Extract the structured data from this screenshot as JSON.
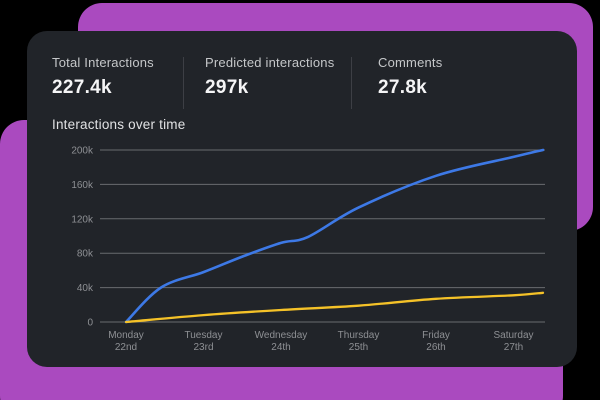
{
  "colors": {
    "background": "#000000",
    "accent_magenta": "#aa4abf",
    "card_background": "#212429",
    "grid_line": "#696b6f",
    "axis_text": "#8e9094",
    "line_interactions": "#3d79e6",
    "line_comments": "#f5c228"
  },
  "stats": [
    {
      "label": "Total Interactions",
      "value": "227.4k"
    },
    {
      "label": "Predicted interactions",
      "value": "297k"
    },
    {
      "label": "Comments",
      "value": "27.8k"
    }
  ],
  "chart_data": {
    "type": "line",
    "title": "Interactions over time",
    "xlabel": "",
    "ylabel": "",
    "unit": "k",
    "ylim": [
      0,
      200
    ],
    "grid": true,
    "legend": false,
    "yticks": [
      {
        "v": 200,
        "label": "200k"
      },
      {
        "v": 160,
        "label": "160k"
      },
      {
        "v": 120,
        "label": "120k"
      },
      {
        "v": 80,
        "label": "80k"
      },
      {
        "v": 40,
        "label": "40k"
      },
      {
        "v": 0,
        "label": "0"
      }
    ],
    "categories": [
      {
        "day": "Monday",
        "date": "22nd"
      },
      {
        "day": "Tuesday",
        "date": "23rd"
      },
      {
        "day": "Wednesday",
        "date": "24th"
      },
      {
        "day": "Thursday",
        "date": "25th"
      },
      {
        "day": "Friday",
        "date": "26th"
      },
      {
        "day": "Saturday",
        "date": "27th"
      }
    ],
    "series": [
      {
        "name": "interactions",
        "color": "#3d79e6",
        "stroke_width": 2.6,
        "points": [
          [
            0,
            0
          ],
          [
            0.45,
            40
          ],
          [
            1,
            58
          ],
          [
            1.5,
            76
          ],
          [
            2,
            92
          ],
          [
            2.35,
            99
          ],
          [
            3,
            133
          ],
          [
            4,
            170
          ],
          [
            5,
            192
          ],
          [
            5.38,
            200
          ]
        ]
      },
      {
        "name": "comments",
        "color": "#f5c228",
        "stroke_width": 2.3,
        "points": [
          [
            0,
            0
          ],
          [
            1,
            8
          ],
          [
            2,
            14
          ],
          [
            3,
            19
          ],
          [
            4,
            27
          ],
          [
            5,
            31
          ],
          [
            5.38,
            34
          ]
        ]
      }
    ]
  }
}
